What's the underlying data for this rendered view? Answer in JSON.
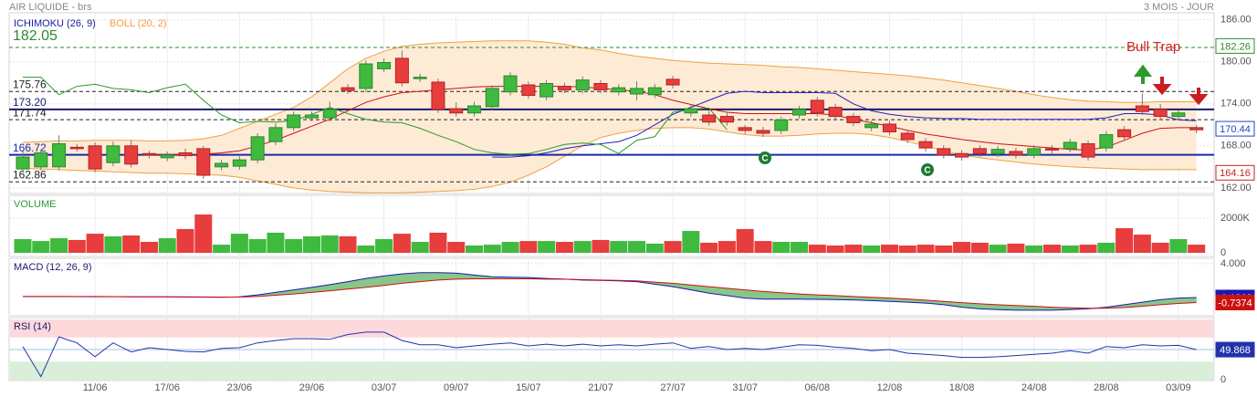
{
  "header": {
    "title": "AIR LIQUIDE - brs",
    "period": "3 MOIS - JOUR"
  },
  "chart_data": [
    {
      "type": "candlestick",
      "legend": [
        {
          "name": "ICHIMOKU (26, 9)",
          "color": "#1a1aa0"
        },
        {
          "name": "BOLL (20, 2)",
          "color": "#f0a040"
        }
      ],
      "categories": [
        null,
        null,
        null,
        null,
        "11/06",
        null,
        null,
        null,
        "17/06",
        null,
        null,
        null,
        "23/06",
        null,
        null,
        null,
        "29/06",
        null,
        null,
        null,
        "03/07",
        null,
        null,
        null,
        "09/07",
        null,
        null,
        null,
        "15/07",
        null,
        null,
        null,
        "21/07",
        null,
        null,
        null,
        "27/07",
        null,
        null,
        null,
        "31/07",
        null,
        null,
        null,
        "06/08",
        null,
        null,
        null,
        "12/08",
        null,
        null,
        null,
        "18/08",
        null,
        null,
        null,
        "24/08",
        null,
        null,
        null,
        "28/08",
        null,
        null,
        null,
        "03/09",
        null
      ],
      "open": [
        164.7,
        165,
        165,
        167.8,
        168,
        165.6,
        168,
        166.9,
        166.3,
        167,
        167.6,
        165,
        165.1,
        166,
        168.6,
        170.6,
        172,
        172,
        176.3,
        176.2,
        179,
        180.5,
        177.6,
        177.1,
        173.3,
        172.7,
        173.6,
        175.7,
        176.7,
        175,
        176.5,
        176,
        176.9,
        175.7,
        175.4,
        175.3,
        177.5,
        172.7,
        172.4,
        172.2,
        170.6,
        170.2,
        170.2,
        172.4,
        174.5,
        173.5,
        172.2,
        170.6,
        171.1,
        169.8,
        168.6,
        167.6,
        166.9,
        167.6,
        166.9,
        167.2,
        166.7,
        167.6,
        167.6,
        168.3,
        167.7,
        170.3,
        173.7,
        173.2,
        172.2,
        170.6
      ],
      "high": [
        167.2,
        167.5,
        169.5,
        168.3,
        168.5,
        168.6,
        168.8,
        167.3,
        167.2,
        167.6,
        168,
        166,
        166.5,
        169.8,
        171.2,
        172.9,
        172.9,
        174.3,
        176.8,
        180.2,
        180.5,
        181.6,
        178.3,
        177.6,
        174.2,
        174.3,
        176.6,
        178.5,
        177.2,
        177.4,
        177,
        177.9,
        177.4,
        176.8,
        177.2,
        176.8,
        178,
        173.8,
        173,
        172.7,
        171,
        170.7,
        172.2,
        173.7,
        175,
        174,
        172.7,
        171.6,
        171.6,
        170.3,
        169.1,
        168.1,
        167.4,
        168.1,
        168,
        167.7,
        168.1,
        168.1,
        169,
        168.8,
        170.1,
        170.8,
        175.5,
        174,
        173.1,
        171
      ],
      "low": [
        164.2,
        164.5,
        164.5,
        167.2,
        164.2,
        165.1,
        164.9,
        166.2,
        165.8,
        166.1,
        163.3,
        164.5,
        164.6,
        165.5,
        168.1,
        170.1,
        171.5,
        171.5,
        175.4,
        175.7,
        178.5,
        176.5,
        177.1,
        172.7,
        172.2,
        172.2,
        173.1,
        175.2,
        174.7,
        174.5,
        175.5,
        175.5,
        175.5,
        175.2,
        174.5,
        174.8,
        176.2,
        172.2,
        170.9,
        170.9,
        169.7,
        169.3,
        169.7,
        171.9,
        172.2,
        171.7,
        170.8,
        170.1,
        169.5,
        168.4,
        167.2,
        166.2,
        165.9,
        166.4,
        166.4,
        166.2,
        166.2,
        166.9,
        167.1,
        165.9,
        167.2,
        168.8,
        172.4,
        171.7,
        171.7,
        169.8
      ],
      "close": [
        166.4,
        167,
        168.3,
        167.6,
        164.7,
        168,
        165.4,
        166.7,
        166.7,
        166.6,
        163.8,
        165.5,
        166,
        169.3,
        170.6,
        172.4,
        172.4,
        173.2,
        175.9,
        179.7,
        179.9,
        177,
        177.8,
        173.2,
        172.7,
        173.7,
        176.2,
        178,
        175.2,
        176.9,
        176,
        177.4,
        176,
        176.3,
        176.2,
        176.3,
        176.7,
        173.3,
        171.4,
        171.4,
        170.2,
        169.8,
        171.7,
        173.2,
        172.7,
        172.2,
        171.3,
        171.1,
        170,
        168.9,
        167.7,
        166.7,
        166.4,
        166.9,
        167.5,
        166.7,
        167.6,
        167.4,
        168.5,
        166.4,
        169.6,
        169.3,
        172.9,
        172.2,
        172.7,
        170.3
      ],
      "up_color": "#3fba3f",
      "down_color": "#e83d3d",
      "ichimoku_lines": [
        {
          "color": "#cc1111",
          "values": [
            null,
            null,
            null,
            null,
            null,
            null,
            null,
            166.7,
            166.7,
            166.7,
            166.8,
            167,
            167.3,
            168,
            168.8,
            169.8,
            170.8,
            171.8,
            173,
            174.2,
            175,
            175.6,
            175.8,
            176,
            176.2,
            176.4,
            176.5,
            176.5,
            176.5,
            176.5,
            176.5,
            176.4,
            176.2,
            176,
            175.8,
            175.3,
            174.5,
            173.9,
            173.3,
            172.8,
            172.6,
            172.6,
            172.6,
            172.6,
            172.6,
            172.4,
            171.8,
            171.3,
            170.8,
            170.2,
            169.7,
            169.3,
            168.9,
            168.6,
            168.3,
            168.1,
            167.9,
            167.7,
            167.5,
            167.4,
            167.8,
            168.8,
            169.8,
            170.5,
            170.6,
            170.6
          ]
        },
        {
          "color": "#2020c0",
          "values": [
            null,
            null,
            null,
            null,
            null,
            null,
            null,
            null,
            null,
            null,
            null,
            null,
            null,
            null,
            null,
            null,
            null,
            null,
            null,
            null,
            null,
            null,
            null,
            null,
            null,
            null,
            166.4,
            166.4,
            166.6,
            167,
            167.6,
            168,
            168.3,
            168.6,
            169.5,
            171,
            172.5,
            173.5,
            174.5,
            175.5,
            175.8,
            175.6,
            175.6,
            175.6,
            175.6,
            175.5,
            174,
            173,
            172.5,
            172.2,
            172,
            171.9,
            171.9,
            171.8,
            171.8,
            171.8,
            171.8,
            171.8,
            171.8,
            171.8,
            172,
            172.6,
            172.6,
            172.4,
            171.7,
            171.6
          ]
        },
        {
          "color": "#2a9a2a",
          "values": [
            177.8,
            177.8,
            175.3,
            176.5,
            176.8,
            176.2,
            176,
            175.6,
            176.3,
            176.8,
            174.5,
            172.4,
            171.3,
            171.5,
            171.4,
            171.6,
            172.5,
            173.5,
            172.6,
            171.8,
            171.4,
            171.3,
            170.5,
            169.5,
            168.6,
            167.5,
            167,
            166.8,
            166.9,
            167.5,
            168.2,
            168.4,
            168.2,
            166.9,
            168.8,
            169.3,
            172.8,
            173.2,
            173.4,
            170.3,
            null,
            null,
            null,
            null,
            null,
            null,
            null,
            null,
            null,
            null,
            null,
            null,
            null,
            null,
            null,
            null,
            null,
            null,
            null,
            null,
            null,
            null,
            null,
            null,
            null,
            null
          ]
        }
      ],
      "bollinger": {
        "color": "#f0a040",
        "fill": "#fdebd6",
        "upper": [
          168.5,
          168.6,
          168.7,
          168.7,
          168.8,
          168.8,
          168.8,
          168.7,
          168.7,
          168.8,
          169,
          169.5,
          170.5,
          171.5,
          172.5,
          173.5,
          175,
          177,
          179,
          180.5,
          181.5,
          182.2,
          182.5,
          182.7,
          182.8,
          182.9,
          183,
          183,
          183,
          182.8,
          182.5,
          182,
          181.7,
          181.2,
          180.8,
          180.5,
          180.2,
          180,
          179.8,
          179.7,
          179.6,
          179.5,
          179.3,
          179.2,
          179,
          178.8,
          178.6,
          178.4,
          178.2,
          178,
          177.7,
          177.4,
          177,
          176.6,
          176.2,
          175.8,
          175.3,
          174.9,
          174.6,
          174.4,
          174.3,
          174.2,
          174.2,
          174.3,
          174.3,
          174.3
        ],
        "lower": [
          164.8,
          164.7,
          164.6,
          164.5,
          164.4,
          164.3,
          164.2,
          164.1,
          164.1,
          164,
          163.9,
          163.8,
          163.5,
          163,
          162.5,
          162,
          161.7,
          161.5,
          161.4,
          161.3,
          161.3,
          161.3,
          161.4,
          161.5,
          161.6,
          161.8,
          162.2,
          162.8,
          163.8,
          165,
          166.5,
          168,
          169.2,
          169.8,
          170.2,
          170.5,
          170.6,
          170.6,
          170.4,
          170,
          169.6,
          169.4,
          169.4,
          169.5,
          169.7,
          169.8,
          169.8,
          169.6,
          169.2,
          168.6,
          168,
          167.3,
          166.7,
          166.3,
          166,
          165.7,
          165.4,
          165.2,
          165,
          164.9,
          164.8,
          164.7,
          164.6,
          164.6,
          164.6,
          164.6
        ]
      },
      "levels": [
        {
          "value": 182.05,
          "color": "#2e8b2e",
          "dashed": true
        },
        {
          "value": 175.76,
          "color": "#222",
          "dashed": true
        },
        {
          "value": 173.2,
          "label": "173.20",
          "color": "#1a1a70",
          "dashed": false
        },
        {
          "value": 171.74,
          "color": "#222",
          "dashed": true
        },
        {
          "value": 166.72,
          "color": "#1a2aa8",
          "dashed": false
        },
        {
          "value": 162.86,
          "color": "#222",
          "dashed": true
        }
      ],
      "price_tags": [
        {
          "value": 182.26,
          "color": "#2e8b2e"
        },
        {
          "value": 170.44,
          "color": "#2244cc"
        },
        {
          "value": 164.16,
          "color": "#cc2222"
        }
      ],
      "annotation": "Bull Trap",
      "signals": [
        "C",
        "C"
      ],
      "ylim": [
        161.2,
        187
      ],
      "yticks": [
        {
          "value": 162,
          "label": "162.00"
        },
        {
          "value": 168,
          "label": "168.00"
        },
        {
          "value": 174,
          "label": "174.00"
        },
        {
          "value": 180,
          "label": "180.00"
        },
        {
          "value": 186,
          "label": "186.00"
        }
      ]
    },
    {
      "type": "bar",
      "title": "VOLUME",
      "title_color": "#2a9a2a",
      "values": [
        790,
        680,
        840,
        740,
        1100,
        950,
        1000,
        630,
        840,
        1370,
        2210,
        470,
        1100,
        790,
        1160,
        790,
        950,
        1000,
        950,
        420,
        790,
        1100,
        630,
        1160,
        630,
        420,
        470,
        630,
        680,
        680,
        630,
        680,
        740,
        680,
        680,
        530,
        680,
        1260,
        580,
        680,
        1370,
        680,
        630,
        630,
        470,
        420,
        470,
        420,
        470,
        420,
        470,
        420,
        630,
        580,
        470,
        530,
        420,
        470,
        420,
        470,
        580,
        1420,
        1050,
        580,
        790,
        470
      ],
      "ylim": [
        0,
        3210
      ],
      "yticks": [
        0,
        {
          "value": 2000,
          "label": "2000K"
        }
      ]
    },
    {
      "type": "line",
      "title": "MACD (12, 26, 9)",
      "title_color": "#1a1a70",
      "fill_color": "#6ab96a",
      "series": [
        {
          "color": "#1a1ab0",
          "values": [
            0,
            0,
            0,
            -0.02,
            -0.03,
            -0.03,
            -0.05,
            -0.05,
            -0.05,
            -0.07,
            -0.08,
            -0.1,
            -0.05,
            0.2,
            0.5,
            0.8,
            1.1,
            1.44,
            1.8,
            2.2,
            2.5,
            2.75,
            2.9,
            2.9,
            2.85,
            2.6,
            2.4,
            2.35,
            2.3,
            2.2,
            2.1,
            2.0,
            1.95,
            1.9,
            1.8,
            1.5,
            1.2,
            0.8,
            0.4,
            0.1,
            -0.2,
            -0.33,
            -0.33,
            -0.33,
            -0.35,
            -0.38,
            -0.42,
            -0.5,
            -0.6,
            -0.7,
            -0.8,
            -1.0,
            -1.3,
            -1.5,
            -1.6,
            -1.67,
            -1.67,
            -1.67,
            -1.6,
            -1.5,
            -1.3,
            -1.0,
            -0.7,
            -0.4,
            -0.2,
            -0.1262
          ]
        },
        {
          "color": "#cc1111",
          "values": [
            0,
            0,
            0,
            0,
            -0.01,
            -0.02,
            -0.03,
            -0.04,
            -0.04,
            -0.05,
            -0.06,
            -0.07,
            -0.07,
            0,
            0.15,
            0.3,
            0.5,
            0.7,
            0.9,
            1.1,
            1.35,
            1.6,
            1.8,
            2.0,
            2.1,
            2.15,
            2.15,
            2.15,
            2.15,
            2.1,
            2.1,
            2.05,
            2.0,
            1.95,
            1.9,
            1.75,
            1.6,
            1.4,
            1.2,
            1.0,
            0.8,
            0.6,
            0.45,
            0.3,
            0.2,
            0.1,
            0,
            -0.1,
            -0.2,
            -0.3,
            -0.45,
            -0.6,
            -0.75,
            -0.9,
            -1.0,
            -1.1,
            -1.2,
            -1.3,
            -1.38,
            -1.44,
            -1.44,
            -1.35,
            -1.2,
            -1.0,
            -0.85,
            -0.7374
          ]
        }
      ],
      "ylim": [
        -2.35,
        4.65
      ],
      "yticks": [
        {
          "value": 4,
          "label": "4.000"
        }
      ]
    },
    {
      "type": "line",
      "title": "RSI (14)",
      "title_color": "#1a1a70",
      "color": "#2233aa",
      "values": [
        55,
        5,
        71,
        61,
        38,
        61,
        46,
        53,
        50,
        47,
        46,
        52,
        53,
        61,
        65,
        68,
        68,
        67,
        75,
        79,
        79,
        65,
        58,
        58,
        53,
        56,
        59,
        61,
        56,
        59,
        56,
        59,
        56,
        58,
        56,
        59,
        61,
        52,
        55,
        50,
        52,
        50,
        54,
        58,
        57,
        54,
        52,
        48,
        50,
        44,
        42,
        40,
        37,
        37,
        38,
        40,
        42,
        44,
        48,
        44,
        55,
        53,
        58,
        56,
        57,
        49.868
      ],
      "zones": [
        {
          "from": 70,
          "to": 100,
          "color": "#fdd9dc"
        },
        {
          "from": 0,
          "to": 30,
          "color": "#d9efd9"
        }
      ],
      "midline": {
        "value": 50,
        "color": "#9cc3ea"
      },
      "ylim": [
        0,
        100
      ],
      "yticks": [
        0
      ]
    }
  ]
}
